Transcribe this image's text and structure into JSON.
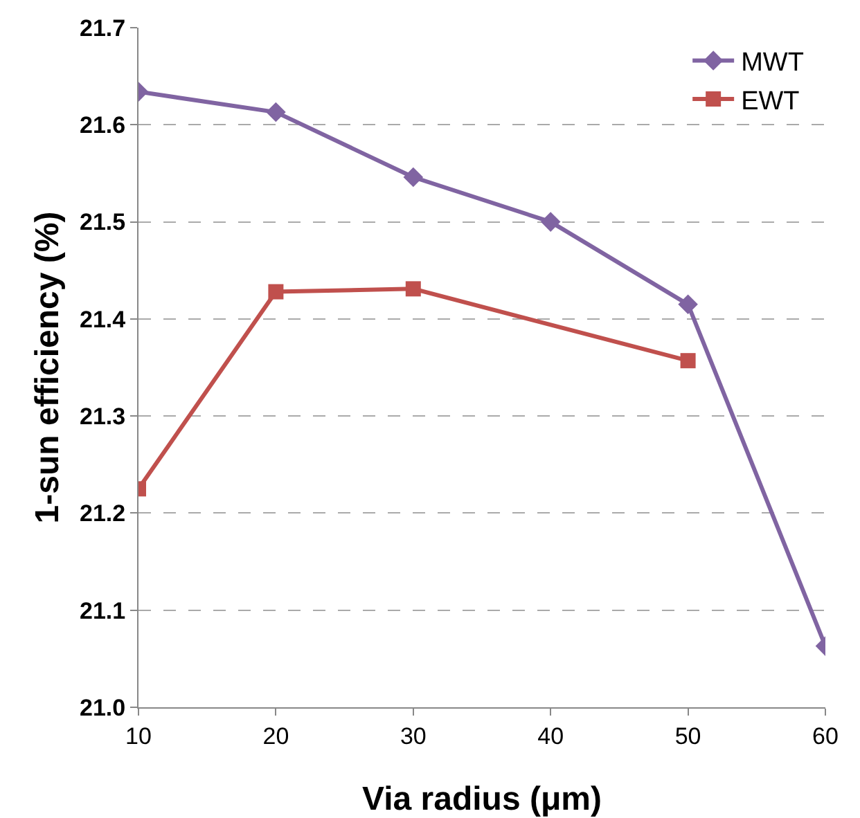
{
  "chart_data": {
    "type": "line",
    "xlabel": "Via radius (μm)",
    "ylabel": "1-sun efficiency (%)",
    "xlim": [
      10,
      60
    ],
    "xticks": [
      10,
      20,
      30,
      40,
      50,
      60
    ],
    "ylim": [
      21.0,
      21.7
    ],
    "yticks": [
      {
        "value": 21.0,
        "label": "21.0"
      },
      {
        "value": 21.1,
        "label": "21.1"
      },
      {
        "value": 21.2,
        "label": "21.2"
      },
      {
        "value": 21.3,
        "label": "21.3"
      },
      {
        "value": 21.4,
        "label": "21.4"
      },
      {
        "value": 21.5,
        "label": "21.5"
      },
      {
        "value": 21.6,
        "label": "21.6"
      },
      {
        "value": 21.7,
        "label": "21.7"
      }
    ],
    "grid": "y",
    "legend": "top right",
    "series": [
      {
        "name": "MWT",
        "color": "#8064a2",
        "marker": "diamond",
        "x": [
          10,
          20,
          30,
          40,
          50,
          60
        ],
        "values": [
          21.634,
          21.613,
          21.546,
          21.5,
          21.415,
          21.063
        ]
      },
      {
        "name": "EWT",
        "color": "#c0504d",
        "marker": "square",
        "x": [
          10,
          20,
          30,
          50
        ],
        "values": [
          21.225,
          21.428,
          21.431,
          21.357
        ]
      }
    ]
  }
}
